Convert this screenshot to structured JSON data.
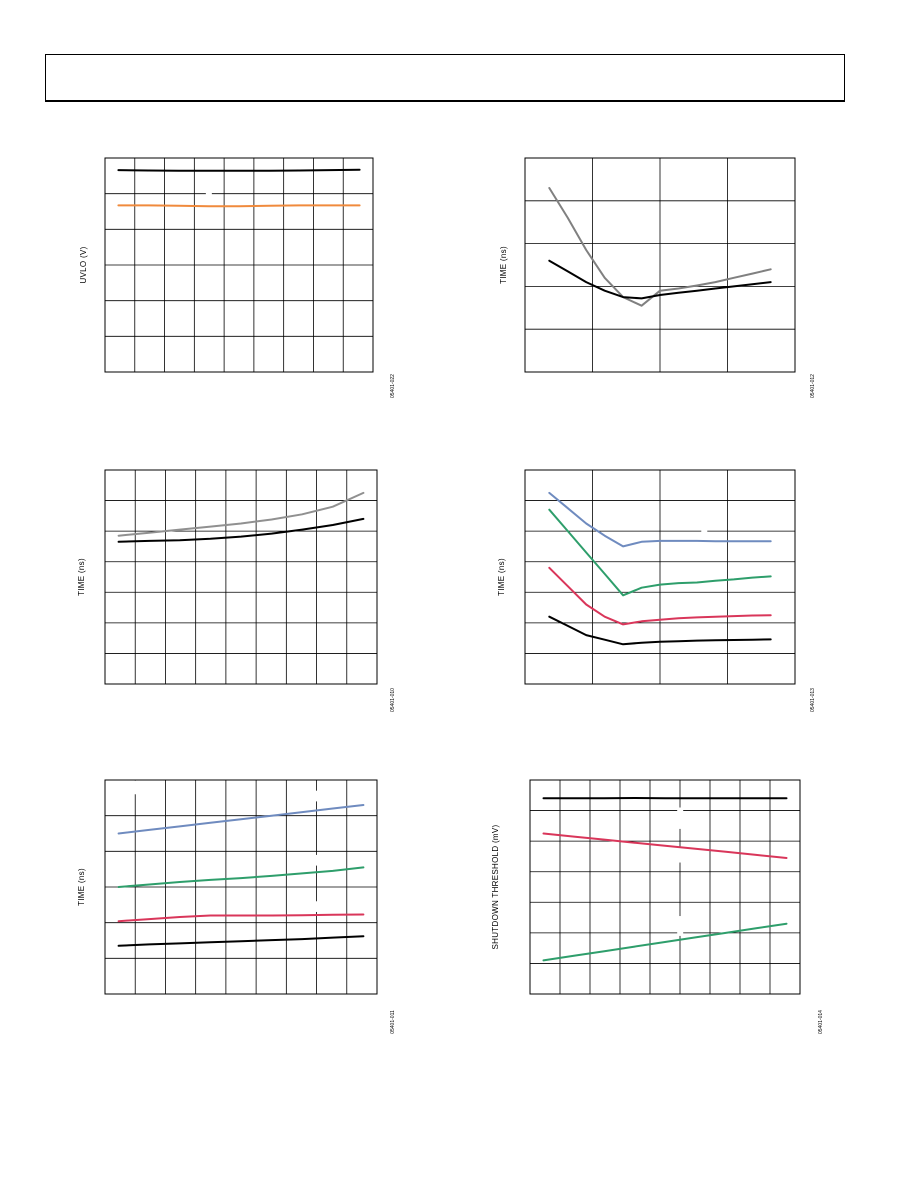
{
  "chart_data": [
    {
      "type": "line",
      "ylabel": "UVLO (V)",
      "figure_code": "05401-022",
      "x": [
        0,
        1,
        2,
        3,
        4,
        5,
        6,
        7,
        8
      ],
      "ylim": [
        0,
        6
      ],
      "grid_cols": 9,
      "grid_rows": 6,
      "series": [
        {
          "color": "#000000",
          "values": [
            5.66,
            5.65,
            5.64,
            5.64,
            5.64,
            5.64,
            5.65,
            5.66,
            5.67
          ]
        },
        {
          "color": "#f08a3c",
          "values": [
            4.67,
            4.67,
            4.66,
            4.65,
            4.65,
            4.66,
            4.67,
            4.67,
            4.67
          ]
        }
      ],
      "masks": [
        {
          "x": 3.0,
          "y0": 4.68,
          "y1": 5.05
        },
        {
          "x": 3.0,
          "y0": 4.15,
          "y1": 4.65
        }
      ]
    },
    {
      "type": "line",
      "ylabel": "TIME (ns)",
      "figure_code": "05401-012",
      "x": [
        0.0,
        0.5,
        1.0,
        1.5,
        2.0,
        2.5,
        3.0,
        3.5,
        4.0,
        4.5,
        5.0,
        5.5,
        6.0
      ],
      "ylim": [
        0,
        5
      ],
      "grid_cols": 4,
      "grid_rows": 5,
      "x_offset": -0.1,
      "series": [
        {
          "color": "#808080",
          "values": [
            4.3,
            3.6,
            2.85,
            2.2,
            1.75,
            1.55,
            1.9,
            1.95,
            2.02,
            2.1,
            2.2,
            2.3,
            2.4
          ]
        },
        {
          "color": "#000000",
          "values": [
            2.6,
            2.35,
            2.1,
            1.9,
            1.75,
            1.72,
            1.8,
            1.85,
            1.9,
            1.95,
            2.0,
            2.05,
            2.1
          ]
        }
      ],
      "masks": []
    },
    {
      "type": "line",
      "ylabel": "TIME (ns)",
      "figure_code": "05401-010",
      "x": [
        0,
        1,
        2,
        3,
        4,
        5,
        6,
        7,
        8
      ],
      "ylim": [
        0,
        7
      ],
      "grid_cols": 9,
      "grid_rows": 7,
      "series": [
        {
          "color": "#909090",
          "values": [
            4.85,
            4.95,
            5.05,
            5.15,
            5.25,
            5.38,
            5.55,
            5.8,
            6.25
          ]
        },
        {
          "color": "#000000",
          "values": [
            4.65,
            4.68,
            4.7,
            4.75,
            4.82,
            4.92,
            5.05,
            5.2,
            5.4
          ]
        }
      ],
      "masks": []
    },
    {
      "type": "line",
      "ylabel": "TIME (ns)",
      "figure_code": "05401-013",
      "x": [
        0.0,
        0.5,
        1.0,
        1.5,
        2.0,
        2.5,
        3.0,
        3.5,
        4.0,
        4.5,
        5.0,
        5.5,
        6.0
      ],
      "ylim": [
        0,
        7
      ],
      "grid_cols": 4,
      "grid_rows": 7,
      "x_offset": -0.1,
      "series": [
        {
          "color": "#6f8bbf",
          "values": [
            6.25,
            5.75,
            5.25,
            4.85,
            4.5,
            4.65,
            4.68,
            4.68,
            4.68,
            4.67,
            4.67,
            4.67,
            4.67
          ]
        },
        {
          "color": "#2e9e6b",
          "values": [
            5.7,
            5.0,
            4.3,
            3.6,
            2.9,
            3.15,
            3.25,
            3.3,
            3.32,
            3.38,
            3.42,
            3.48,
            3.52
          ]
        },
        {
          "color": "#d9365a",
          "values": [
            3.8,
            3.2,
            2.6,
            2.2,
            1.95,
            2.05,
            2.1,
            2.15,
            2.18,
            2.2,
            2.22,
            2.24,
            2.25
          ]
        },
        {
          "color": "#000000",
          "values": [
            2.2,
            1.9,
            1.6,
            1.45,
            1.3,
            1.35,
            1.38,
            1.4,
            1.42,
            1.43,
            1.44,
            1.45,
            1.46
          ]
        }
      ],
      "masks": [
        {
          "x": 4.2,
          "y0": 4.9,
          "y1": 5.2
        }
      ]
    },
    {
      "type": "line",
      "ylabel": "TIME (ns)",
      "figure_code": "05401-011",
      "x": [
        0,
        1,
        2,
        3,
        4,
        5,
        6,
        7,
        8
      ],
      "ylim": [
        0,
        6
      ],
      "grid_cols": 9,
      "grid_rows": 6,
      "series": [
        {
          "color": "#6f8bbf",
          "values": [
            4.5,
            4.6,
            4.7,
            4.8,
            4.9,
            5.0,
            5.1,
            5.2,
            5.3
          ]
        },
        {
          "color": "#2e9e6b",
          "values": [
            3.0,
            3.07,
            3.14,
            3.2,
            3.25,
            3.31,
            3.38,
            3.45,
            3.55
          ]
        },
        {
          "color": "#d9365a",
          "values": [
            2.04,
            2.1,
            2.16,
            2.2,
            2.2,
            2.2,
            2.21,
            2.22,
            2.23
          ]
        },
        {
          "color": "#000000",
          "values": [
            1.35,
            1.39,
            1.42,
            1.45,
            1.48,
            1.51,
            1.54,
            1.58,
            1.62
          ]
        }
      ],
      "masks": [
        {
          "x": 0.5,
          "y0": 5.6,
          "y1": 5.98
        },
        {
          "x": 6.5,
          "y0": 5.4,
          "y1": 5.7
        },
        {
          "x": 6.5,
          "y0": 3.6,
          "y1": 3.9
        },
        {
          "x": 6.5,
          "y0": 2.3,
          "y1": 2.6
        }
      ]
    },
    {
      "type": "line",
      "ylabel": "SHUTDOWN THRESHOLD (mV)",
      "figure_code": "05401-014",
      "x": [
        0,
        1,
        2,
        3,
        4,
        5,
        6,
        7,
        8
      ],
      "ylim": [
        0,
        7
      ],
      "grid_cols": 9,
      "grid_rows": 7,
      "series": [
        {
          "color": "#000000",
          "values": [
            6.4,
            6.4,
            6.4,
            6.41,
            6.4,
            6.4,
            6.4,
            6.4,
            6.4
          ]
        },
        {
          "color": "#d9365a",
          "values": [
            5.25,
            5.15,
            5.05,
            4.95,
            4.85,
            4.75,
            4.65,
            4.55,
            4.45
          ]
        },
        {
          "color": "#2e9e6b",
          "values": [
            1.1,
            1.25,
            1.4,
            1.55,
            1.7,
            1.85,
            2.0,
            2.15,
            2.3
          ]
        }
      ],
      "masks": [
        {
          "x": 4.5,
          "y0": 5.4,
          "y1": 6.1
        },
        {
          "x": 4.5,
          "y0": 4.3,
          "y1": 4.8
        },
        {
          "x": 4.5,
          "y0": 1.9,
          "y1": 2.55
        }
      ]
    }
  ]
}
